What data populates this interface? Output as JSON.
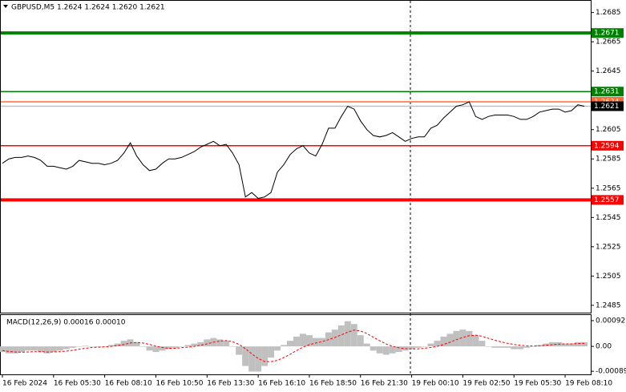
{
  "chart_data": [
    {
      "type": "line",
      "title": "GBPUSD,M5  1.2624 1.2624 1.2620 1.2621",
      "color": "#000000",
      "categories": [
        "16 Feb 2024",
        null,
        null,
        null,
        null,
        null,
        null,
        null,
        "16 Feb 05:30",
        null,
        null,
        null,
        null,
        null,
        null,
        null,
        "16 Feb 08:10",
        null,
        null,
        null,
        null,
        null,
        null,
        null,
        "16 Feb 10:50",
        null,
        null,
        null,
        null,
        null,
        null,
        null,
        "16 Feb 13:30",
        null,
        null,
        null,
        null,
        null,
        null,
        null,
        "16 Feb 16:10",
        null,
        null,
        null,
        null,
        null,
        null,
        null,
        "16 Feb 18:50",
        null,
        null,
        null,
        null,
        null,
        null,
        null,
        "16 Feb 21:30",
        null,
        null,
        null,
        null,
        null,
        null,
        null,
        "19 Feb 00:10",
        null,
        null,
        null,
        null,
        null,
        null,
        null,
        "19 Feb 02:50",
        null,
        null,
        null,
        null,
        null,
        null,
        null,
        "19 Feb 05:30",
        null,
        null,
        null,
        null,
        null,
        null,
        null,
        "19 Feb 08:10",
        null,
        null,
        null
      ],
      "values": [
        1.2582,
        1.2585,
        1.2586,
        1.2586,
        1.2587,
        1.2586,
        1.2584,
        1.258,
        1.258,
        1.2579,
        1.2578,
        1.258,
        1.2584,
        1.2583,
        1.2582,
        1.2582,
        1.2581,
        1.2582,
        1.2584,
        1.2589,
        1.2596,
        1.2587,
        1.2581,
        1.2577,
        1.2578,
        1.2582,
        1.2585,
        1.2585,
        1.2586,
        1.2588,
        1.259,
        1.2593,
        1.2595,
        1.2597,
        1.2594,
        1.2595,
        1.2589,
        1.2581,
        1.2559,
        1.2562,
        1.2558,
        1.2559,
        1.2562,
        1.2576,
        1.2581,
        1.2588,
        1.2592,
        1.2594,
        1.2589,
        1.2587,
        1.2595,
        1.2606,
        1.2606,
        1.2614,
        1.2621,
        1.2619,
        1.2611,
        1.2605,
        1.2601,
        1.26,
        1.2601,
        1.2603,
        1.26,
        1.2597,
        1.2599,
        1.26,
        1.26,
        1.2606,
        1.2608,
        1.2613,
        1.2617,
        1.2621,
        1.2622,
        1.2624,
        1.2614,
        1.2612,
        1.2614,
        1.2615,
        1.2615,
        1.2615,
        1.2614,
        1.2612,
        1.2612,
        1.2614,
        1.2617,
        1.2618,
        1.2619,
        1.2619,
        1.2617,
        1.2618,
        1.2622,
        1.2621
      ],
      "ylim": [
        1.248,
        1.2693
      ],
      "yticks": [
        1.2685,
        1.2665,
        1.2645,
        1.2625,
        1.2605,
        1.2585,
        1.2565,
        1.2545,
        1.2525,
        1.2505,
        1.2485
      ],
      "levels": [
        {
          "value": 1.2671,
          "color": "#008000",
          "thick": true
        },
        {
          "value": 1.2631,
          "color": "#008000",
          "thick": false
        },
        {
          "value": 1.2624,
          "color": "#ff6a33",
          "thick": false
        },
        {
          "value": 1.2621,
          "color": "#000000",
          "thick": false
        },
        {
          "value": 1.2594,
          "color": "#ff0000",
          "thick": false
        },
        {
          "value": 1.2557,
          "color": "#ff0000",
          "thick": true
        }
      ]
    },
    {
      "type": "macd",
      "title": "MACD(12,26,9) 0.00016 0.00010",
      "histogram_color": "#c0c0c0",
      "signal_color": "#ff0000",
      "histogram": [
        -0.0002,
        -0.00025,
        -0.00025,
        -0.0002,
        -0.00015,
        -0.00015,
        -0.0002,
        -0.00025,
        -0.0002,
        -0.00015,
        -0.0001,
        -5e-05,
        0,
        2e-05,
        0,
        -2e-05,
        0,
        5e-05,
        0.0001,
        0.0002,
        0.00025,
        0.00015,
        0,
        -0.00015,
        -0.0002,
        -0.00015,
        -0.0001,
        -5e-05,
        0,
        5e-05,
        0.0001,
        0.00015,
        0.00025,
        0.0003,
        0.00025,
        0.0002,
        0,
        -0.0003,
        -0.0007,
        -0.0009,
        -0.0009,
        -0.0007,
        -0.0004,
        -0.00015,
        5e-05,
        0.0002,
        0.00035,
        0.00045,
        0.0004,
        0.0003,
        0.0003,
        0.0005,
        0.0006,
        0.00075,
        0.0009,
        0.0008,
        0.0004,
        0.0001,
        -0.00015,
        -0.00025,
        -0.0003,
        -0.00025,
        -0.0002,
        -0.00015,
        -0.0001,
        -5e-05,
        0,
        0.0001,
        0.0002,
        0.00035,
        0.00045,
        0.00055,
        0.0006,
        0.00055,
        0.0004,
        0.0002,
        0,
        -5e-05,
        -5e-05,
        -5e-05,
        -0.0001,
        -0.0001,
        -5e-05,
        0,
        5e-05,
        0.0001,
        0.00015,
        0.00015,
        0.0001,
        0.0001,
        0.00015,
        0.00015
      ],
      "signal": [
        -0.00015,
        -0.00018,
        -0.0002,
        -0.00021,
        -0.0002,
        -0.00019,
        -0.00019,
        -0.0002,
        -0.0002,
        -0.00019,
        -0.00017,
        -0.00014,
        -0.0001,
        -7e-05,
        -4e-05,
        -3e-05,
        -2e-05,
        0,
        3e-05,
        7e-05,
        0.00012,
        0.00014,
        0.00012,
        7e-05,
        1e-05,
        -4e-05,
        -7e-05,
        -7e-05,
        -5e-05,
        -3e-05,
        0,
        4e-05,
        9e-05,
        0.00015,
        0.00019,
        0.00021,
        0.00017,
        7e-05,
        -8e-05,
        -0.00027,
        -0.00043,
        -0.00054,
        -0.00055,
        -0.0005,
        -0.0004,
        -0.00028,
        -0.00015,
        -3e-05,
        6e-05,
        0.00012,
        0.00017,
        0.00024,
        0.00032,
        0.00041,
        0.00051,
        0.00058,
        0.00055,
        0.00046,
        0.00033,
        0.0002,
        9e-05,
        0,
        -5e-05,
        -8e-05,
        -9e-05,
        -9e-05,
        -7e-05,
        -4e-05,
        0,
        7e-05,
        0.00015,
        0.00024,
        0.00032,
        0.00038,
        0.0004,
        0.00036,
        0.00029,
        0.00022,
        0.00016,
        0.00011,
        7e-05,
        4e-05,
        2e-05,
        1e-05,
        2e-05,
        4e-05,
        6e-05,
        8e-05,
        9e-05,
        9e-05,
        0.0001,
        0.00011
      ],
      "ylim": [
        -0.001,
        0.00112
      ],
      "yticks": [
        0.00092,
        {
          "value": 0,
          "label": "0.00"
        },
        -0.00089
      ]
    }
  ]
}
